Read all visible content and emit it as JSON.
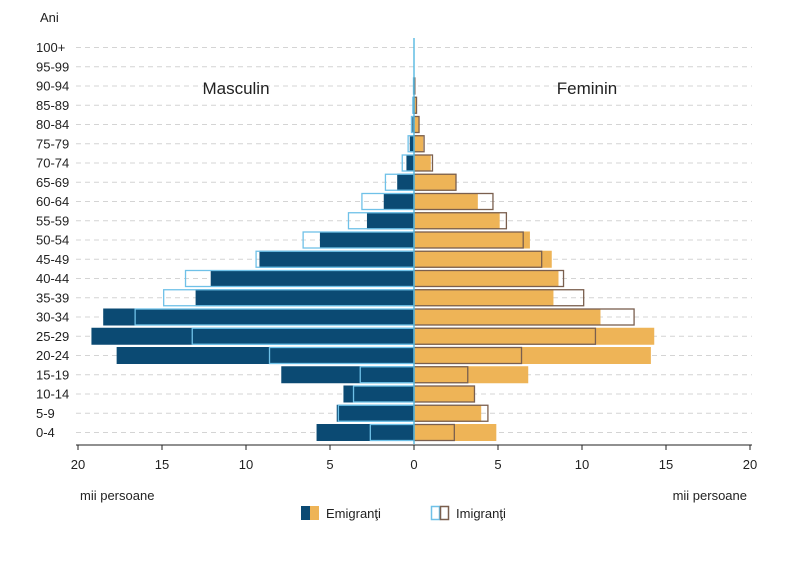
{
  "chart_data": {
    "type": "bar",
    "subtype": "population-pyramid",
    "y_axis_title": "Ani",
    "categories": [
      "0-4",
      "5-9",
      "10-14",
      "15-19",
      "20-24",
      "25-29",
      "30-34",
      "35-39",
      "40-44",
      "45-49",
      "50-54",
      "55-59",
      "60-64",
      "65-69",
      "70-74",
      "75-79",
      "80-84",
      "85-89",
      "90-94",
      "95-99",
      "100+"
    ],
    "sides": {
      "left": "Masculin",
      "right": "Feminin"
    },
    "xlabel_left": "mii persoane",
    "xlabel_right": "mii persoane",
    "x_ticks": [
      20,
      15,
      10,
      5,
      0,
      5,
      10,
      15,
      20
    ],
    "xlim": [
      0,
      20
    ],
    "series": [
      {
        "name": "Emigranţi",
        "male": [
          5.8,
          4.6,
          4.2,
          7.9,
          17.7,
          19.2,
          18.5,
          13.0,
          12.1,
          9.2,
          5.6,
          2.8,
          1.8,
          1.0,
          0.45,
          0.25,
          0.1,
          0.05,
          0.02,
          0.01,
          0.0
        ],
        "female": [
          4.9,
          4.0,
          3.6,
          6.8,
          14.1,
          14.3,
          11.1,
          8.3,
          8.6,
          8.2,
          6.9,
          5.1,
          3.8,
          2.5,
          1.0,
          0.55,
          0.3,
          0.15,
          0.05,
          0.02,
          0.0
        ]
      },
      {
        "name": "Imigranţi",
        "male": [
          2.6,
          4.5,
          3.6,
          3.2,
          8.6,
          13.2,
          16.6,
          14.9,
          13.6,
          9.4,
          6.6,
          3.9,
          3.1,
          1.7,
          0.7,
          0.35,
          0.15,
          0.07,
          0.03,
          0.01,
          0.0
        ],
        "female": [
          2.4,
          4.4,
          3.6,
          3.2,
          6.4,
          10.8,
          13.1,
          10.1,
          8.9,
          7.6,
          6.5,
          5.5,
          4.7,
          2.5,
          1.1,
          0.6,
          0.3,
          0.15,
          0.05,
          0.02,
          0.0
        ]
      }
    ],
    "colors": {
      "emig_male": "#0b4a73",
      "emig_female": "#eeb457",
      "imig_male": "#6fc1e8",
      "imig_female": "#7a5f4e",
      "center_line": "#56b8e0",
      "grid": "#d4d4d4"
    }
  }
}
